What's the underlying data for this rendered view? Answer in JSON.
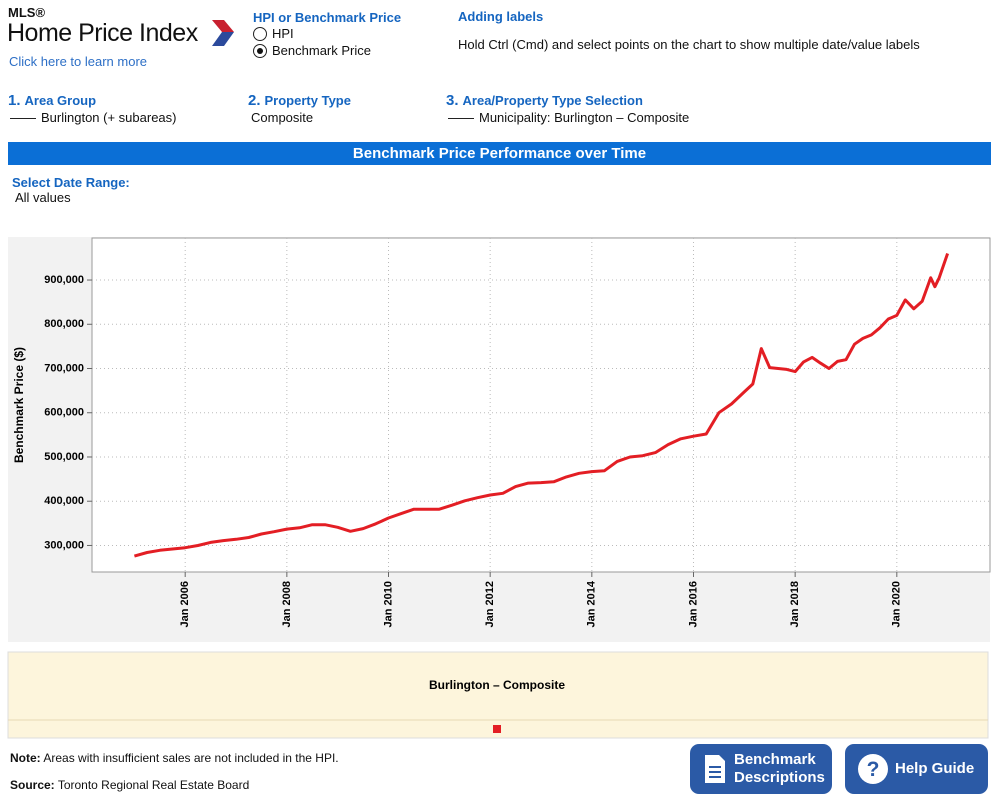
{
  "header": {
    "brand": "MLS®",
    "title": "Home Price Index",
    "link": "Click here to learn more"
  },
  "price_toggle": {
    "title": "HPI or Benchmark Price",
    "options": [
      "HPI",
      "Benchmark Price"
    ],
    "selected": 1
  },
  "adding_labels": {
    "title": "Adding labels",
    "text": "Hold Ctrl (Cmd) and select points on the chart to show multiple date/value labels"
  },
  "steps": [
    {
      "number": "1.",
      "title": "Area Group",
      "value": "Burlington (+ subareas)"
    },
    {
      "number": "2.",
      "title": "Property Type",
      "value": "Composite"
    },
    {
      "number": "3.",
      "title": "Area/Property Type Selection",
      "value": "Municipality: Burlington – Composite"
    }
  ],
  "banner": "Benchmark Price Performance over Time",
  "date_range": {
    "label": "Select Date Range:",
    "value": "All values"
  },
  "chart_data": {
    "type": "line",
    "y_label": "Benchmark Price ($)",
    "x": [
      "2005-01",
      "2005-04",
      "2005-07",
      "2005-10",
      "2006-01",
      "2006-04",
      "2006-07",
      "2006-10",
      "2007-01",
      "2007-04",
      "2007-07",
      "2007-10",
      "2008-01",
      "2008-04",
      "2008-07",
      "2008-10",
      "2009-01",
      "2009-04",
      "2009-07",
      "2009-10",
      "2010-01",
      "2010-04",
      "2010-07",
      "2010-10",
      "2011-01",
      "2011-04",
      "2011-07",
      "2011-10",
      "2012-01",
      "2012-04",
      "2012-07",
      "2012-10",
      "2013-01",
      "2013-04",
      "2013-07",
      "2013-10",
      "2014-01",
      "2014-04",
      "2014-07",
      "2014-10",
      "2015-01",
      "2015-04",
      "2015-07",
      "2015-10",
      "2016-01",
      "2016-04",
      "2016-07",
      "2016-10",
      "2017-01",
      "2017-03",
      "2017-05",
      "2017-07",
      "2017-09",
      "2017-11",
      "2018-01",
      "2018-03",
      "2018-05",
      "2018-07",
      "2018-09",
      "2018-11",
      "2019-01",
      "2019-03",
      "2019-05",
      "2019-07",
      "2019-09",
      "2019-11",
      "2020-01",
      "2020-03",
      "2020-05",
      "2020-07",
      "2020-09",
      "2020-10",
      "2020-11",
      "2021-01"
    ],
    "series": [
      {
        "name": "Burlington – Composite",
        "color": "#e31e24",
        "values": [
          276000,
          284000,
          289000,
          292000,
          295000,
          300000,
          307000,
          311000,
          314000,
          318000,
          326000,
          331000,
          337000,
          340000,
          347000,
          347000,
          341000,
          332000,
          338000,
          349000,
          362000,
          372000,
          382000,
          382000,
          382000,
          391000,
          401000,
          408000,
          414000,
          418000,
          433000,
          441000,
          442000,
          444000,
          455000,
          463000,
          467000,
          469000,
          490000,
          500000,
          503000,
          510000,
          528000,
          541000,
          547000,
          552000,
          600000,
          620000,
          647000,
          665000,
          745000,
          702000,
          700000,
          698000,
          693000,
          715000,
          725000,
          712000,
          700000,
          716000,
          720000,
          755000,
          768000,
          776000,
          792000,
          812000,
          820000,
          855000,
          835000,
          852000,
          905000,
          885000,
          905000,
          960000
        ]
      }
    ],
    "xlim": [
      "2004-03",
      "2021-11"
    ],
    "xticks": [
      {
        "value": "2006-01",
        "label": "Jan 2006"
      },
      {
        "value": "2008-01",
        "label": "Jan 2008"
      },
      {
        "value": "2010-01",
        "label": "Jan 2010"
      },
      {
        "value": "2012-01",
        "label": "Jan 2012"
      },
      {
        "value": "2014-01",
        "label": "Jan 2014"
      },
      {
        "value": "2016-01",
        "label": "Jan 2016"
      },
      {
        "value": "2018-01",
        "label": "Jan 2018"
      },
      {
        "value": "2020-01",
        "label": "Jan 2020"
      }
    ],
    "ylim": [
      240000,
      995000
    ],
    "yticks": [
      {
        "value": 300000,
        "label": "300,000"
      },
      {
        "value": 400000,
        "label": "400,000"
      },
      {
        "value": 500000,
        "label": "500,000"
      },
      {
        "value": 600000,
        "label": "600,000"
      },
      {
        "value": 700000,
        "label": "700,000"
      },
      {
        "value": 800000,
        "label": "800,000"
      },
      {
        "value": 900000,
        "label": "900,000"
      }
    ],
    "grid": true
  },
  "footer": {
    "note_label": "Note:",
    "note": "Areas with insufficient sales are not included in the HPI.",
    "source_label": "Source:",
    "source": "Toronto Regional Real Estate Board",
    "buttons": [
      "Benchmark Descriptions",
      "Help Guide"
    ]
  }
}
